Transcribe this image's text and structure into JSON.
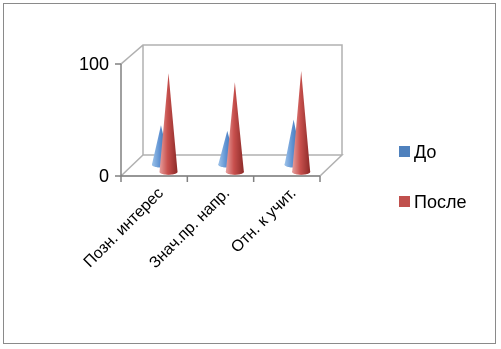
{
  "chart_data": {
    "type": "bar",
    "style": "3d-cone",
    "categories": [
      "Позн. интерес",
      "Знач.пр. напр.",
      "Отн. к учит."
    ],
    "series": [
      {
        "name": "До",
        "values": [
          35,
          30,
          40
        ],
        "color": "#4f81bd"
      },
      {
        "name": "После",
        "values": [
          88,
          80,
          90
        ],
        "color": "#c0504d"
      }
    ],
    "ylim": [
      0,
      100
    ],
    "yticks": [
      0,
      100
    ],
    "grid": false,
    "legend": "right"
  }
}
